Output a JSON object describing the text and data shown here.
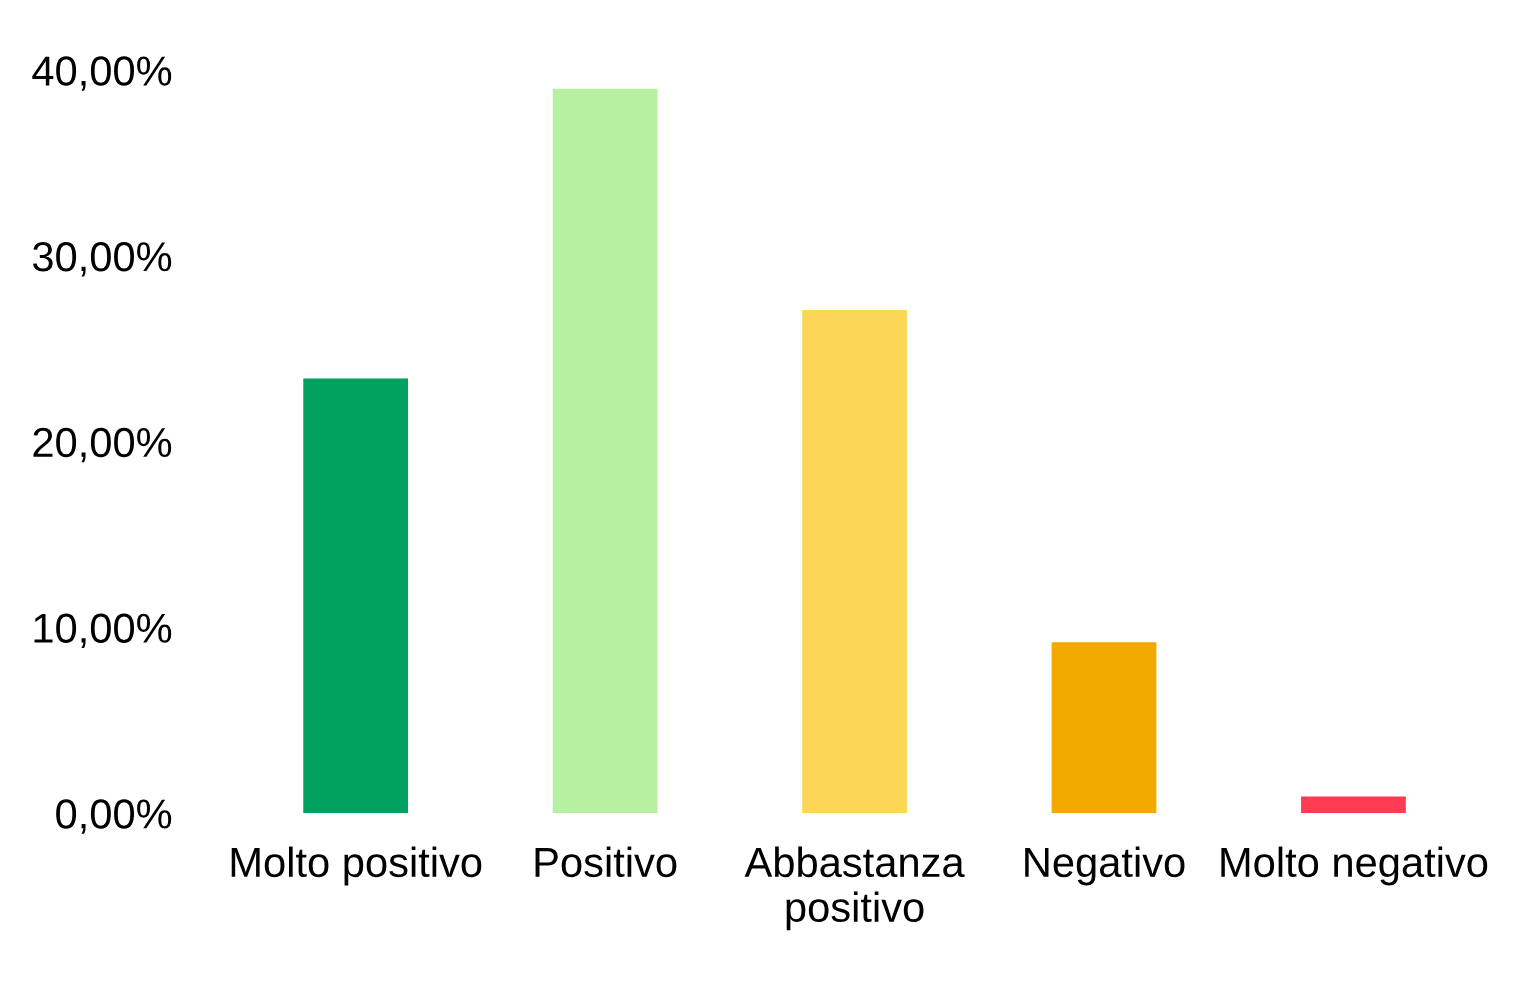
{
  "chart_data": {
    "type": "bar",
    "categories": [
      "Molto positivo",
      "Positivo",
      "Abbastanza\npositivo",
      "Negativo",
      "Molto negativo"
    ],
    "values": [
      23.4,
      39.0,
      27.1,
      9.2,
      0.9
    ],
    "colors": [
      "#00a05e",
      "#b8f0a2",
      "#fcd757",
      "#f2a900",
      "#ff3c52"
    ],
    "ylim": [
      0,
      40
    ],
    "yticks": [
      {
        "value": 0,
        "label": "0,00%"
      },
      {
        "value": 10,
        "label": "10,00%"
      },
      {
        "value": 20,
        "label": "20,00%"
      },
      {
        "value": 30,
        "label": "30,00%"
      },
      {
        "value": 40,
        "label": "40,00%"
      }
    ],
    "grid": false,
    "legend": false
  }
}
